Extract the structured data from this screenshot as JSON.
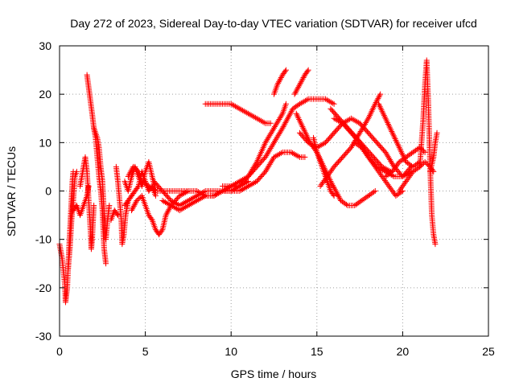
{
  "chart_data": {
    "type": "scatter",
    "title": "Day 272 of 2023, Sidereal Day-to-day VTEC variation (SDTVAR) for receiver ufcd",
    "xlabel": "GPS time / hours",
    "ylabel": "SDTVAR / TECUs",
    "xlim": [
      0,
      25
    ],
    "ylim": [
      -30,
      30
    ],
    "xticks": [
      "0",
      "5",
      "10",
      "15",
      "20",
      "25"
    ],
    "yticks": [
      "-30",
      "-20",
      "-10",
      "0",
      "10",
      "20",
      "30"
    ],
    "grid": true,
    "marker": "+",
    "color": "#ff0000",
    "tracks": [
      [
        [
          0.0,
          -11
        ],
        [
          0.15,
          -14
        ],
        [
          0.3,
          -19
        ],
        [
          0.35,
          -23
        ],
        [
          0.45,
          -20
        ],
        [
          0.55,
          -12
        ],
        [
          0.65,
          -5
        ],
        [
          0.75,
          2
        ],
        [
          0.8,
          4
        ]
      ],
      [
        [
          0.5,
          -16
        ],
        [
          0.6,
          -12
        ],
        [
          0.7,
          -6
        ],
        [
          0.8,
          -2
        ],
        [
          0.9,
          3
        ],
        [
          1.0,
          4
        ]
      ],
      [
        [
          0.8,
          -4
        ],
        [
          1.0,
          -3
        ],
        [
          1.2,
          -5
        ],
        [
          1.4,
          -3
        ],
        [
          1.6,
          -1
        ],
        [
          1.7,
          1
        ]
      ],
      [
        [
          1.2,
          1
        ],
        [
          1.3,
          3
        ],
        [
          1.4,
          5
        ],
        [
          1.5,
          7
        ],
        [
          1.6,
          4
        ],
        [
          1.7,
          -2
        ],
        [
          1.8,
          -8
        ],
        [
          1.85,
          -12
        ],
        [
          1.9,
          -10
        ],
        [
          2.0,
          -3
        ]
      ],
      [
        [
          1.6,
          24
        ],
        [
          1.75,
          20
        ],
        [
          1.9,
          16
        ],
        [
          2.0,
          13
        ],
        [
          2.1,
          11
        ],
        [
          2.2,
          7
        ],
        [
          2.3,
          3
        ],
        [
          2.4,
          0
        ],
        [
          2.5,
          -4
        ],
        [
          2.6,
          -12
        ],
        [
          2.7,
          -15
        ]
      ],
      [
        [
          2.0,
          13
        ],
        [
          2.2,
          11
        ],
        [
          2.3,
          9
        ],
        [
          2.4,
          5
        ],
        [
          2.5,
          2
        ],
        [
          2.6,
          -5
        ],
        [
          2.7,
          -10
        ],
        [
          2.8,
          -6
        ],
        [
          2.9,
          -3
        ]
      ],
      [
        [
          3.0,
          -6
        ],
        [
          3.2,
          -4
        ],
        [
          3.4,
          -5
        ]
      ],
      [
        [
          3.3,
          5
        ],
        [
          3.4,
          2
        ],
        [
          3.5,
          -2
        ],
        [
          3.6,
          -6
        ],
        [
          3.65,
          -11
        ],
        [
          3.75,
          -9
        ],
        [
          3.85,
          -5
        ],
        [
          4.0,
          -2
        ]
      ],
      [
        [
          3.8,
          2
        ],
        [
          4.0,
          0
        ],
        [
          4.2,
          3
        ],
        [
          4.4,
          5
        ],
        [
          4.6,
          3
        ],
        [
          4.8,
          1
        ],
        [
          5.0,
          4
        ],
        [
          5.2,
          6
        ],
        [
          5.4,
          3
        ],
        [
          5.6,
          0
        ]
      ],
      [
        [
          3.8,
          -3
        ],
        [
          4.0,
          -2
        ],
        [
          4.2,
          -1
        ],
        [
          4.4,
          0
        ],
        [
          4.6,
          1
        ],
        [
          4.8,
          4
        ],
        [
          5.0,
          2
        ],
        [
          5.2,
          0
        ],
        [
          5.4,
          1
        ],
        [
          5.6,
          -1
        ]
      ],
      [
        [
          4.2,
          -4
        ],
        [
          4.5,
          -2
        ],
        [
          4.8,
          -1
        ],
        [
          5.0,
          -3
        ],
        [
          5.2,
          -5
        ],
        [
          5.4,
          -6
        ],
        [
          5.6,
          -8
        ],
        [
          5.8,
          -9
        ],
        [
          6.0,
          -8
        ],
        [
          6.2,
          -5
        ],
        [
          6.5,
          -3
        ],
        [
          7.0,
          -1
        ],
        [
          7.5,
          0
        ]
      ],
      [
        [
          4.0,
          3
        ],
        [
          4.3,
          5
        ],
        [
          4.6,
          4
        ],
        [
          4.8,
          2
        ],
        [
          5.2,
          1
        ],
        [
          5.6,
          0
        ],
        [
          6.0,
          0
        ],
        [
          6.5,
          0
        ],
        [
          7.0,
          0
        ],
        [
          7.5,
          0
        ],
        [
          8.0,
          0
        ]
      ],
      [
        [
          5.5,
          2
        ],
        [
          6.0,
          0
        ],
        [
          6.5,
          -2
        ],
        [
          7.0,
          -3
        ],
        [
          7.5,
          -2
        ],
        [
          8.0,
          -1
        ],
        [
          8.5,
          0
        ],
        [
          9.0,
          0
        ],
        [
          9.5,
          0
        ],
        [
          10.0,
          1
        ]
      ],
      [
        [
          6.0,
          -2
        ],
        [
          6.5,
          -3
        ],
        [
          7.0,
          -4
        ],
        [
          7.5,
          -3
        ],
        [
          8.0,
          -2
        ],
        [
          8.5,
          -1
        ],
        [
          9.0,
          -1
        ],
        [
          9.5,
          0
        ],
        [
          10.0,
          0
        ]
      ],
      [
        [
          8.0,
          0
        ],
        [
          8.5,
          -1
        ],
        [
          9.0,
          -1
        ],
        [
          9.5,
          0
        ],
        [
          10.0,
          1
        ],
        [
          10.5,
          1
        ],
        [
          11.0,
          2
        ]
      ],
      [
        [
          8.5,
          18
        ],
        [
          9.0,
          18
        ],
        [
          9.5,
          18
        ],
        [
          10.0,
          18
        ],
        [
          10.5,
          17
        ],
        [
          11.0,
          16
        ],
        [
          11.5,
          15
        ],
        [
          12.0,
          14
        ],
        [
          12.3,
          14
        ]
      ],
      [
        [
          9.5,
          0
        ],
        [
          10.0,
          0
        ],
        [
          10.5,
          0
        ],
        [
          11.0,
          1
        ],
        [
          11.5,
          2
        ],
        [
          12.0,
          4
        ],
        [
          12.5,
          7
        ],
        [
          13.0,
          8
        ],
        [
          13.5,
          8
        ],
        [
          14.0,
          7
        ],
        [
          14.3,
          7
        ]
      ],
      [
        [
          9.5,
          1
        ],
        [
          10.0,
          1
        ],
        [
          10.5,
          2
        ],
        [
          11.0,
          3
        ],
        [
          11.5,
          5
        ],
        [
          12.0,
          7
        ],
        [
          12.5,
          10
        ],
        [
          13.0,
          13
        ],
        [
          13.3,
          15
        ],
        [
          13.6,
          17
        ],
        [
          14.0,
          18
        ],
        [
          14.5,
          19
        ],
        [
          15.0,
          19
        ],
        [
          15.5,
          19
        ],
        [
          16.0,
          18
        ]
      ],
      [
        [
          10.0,
          0
        ],
        [
          10.5,
          1
        ],
        [
          11.0,
          3
        ],
        [
          11.5,
          6
        ],
        [
          12.0,
          10
        ],
        [
          12.5,
          13
        ],
        [
          13.0,
          16
        ],
        [
          13.2,
          18
        ]
      ],
      [
        [
          12.5,
          20
        ],
        [
          12.7,
          22
        ],
        [
          13.0,
          24
        ],
        [
          13.2,
          25
        ]
      ],
      [
        [
          13.7,
          20
        ],
        [
          14.0,
          22
        ],
        [
          14.3,
          24
        ],
        [
          14.5,
          25
        ]
      ],
      [
        [
          13.8,
          16
        ],
        [
          14.2,
          13
        ],
        [
          14.6,
          10
        ],
        [
          15.0,
          8
        ],
        [
          15.4,
          5
        ],
        [
          15.8,
          2
        ],
        [
          16.1,
          0
        ],
        [
          16.4,
          -2
        ],
        [
          16.8,
          -3
        ],
        [
          17.2,
          -3
        ],
        [
          17.6,
          -2
        ],
        [
          18.0,
          -1
        ],
        [
          18.4,
          0
        ]
      ],
      [
        [
          14.8,
          11
        ],
        [
          15.0,
          8
        ],
        [
          15.2,
          6
        ],
        [
          15.4,
          4
        ],
        [
          15.6,
          2
        ],
        [
          15.8,
          0
        ],
        [
          16.0,
          -1
        ]
      ],
      [
        [
          14.0,
          12
        ],
        [
          14.5,
          10
        ],
        [
          15.0,
          9
        ],
        [
          15.5,
          10
        ],
        [
          16.0,
          12
        ],
        [
          16.5,
          14
        ],
        [
          17.0,
          15
        ],
        [
          17.5,
          14
        ],
        [
          18.0,
          12
        ],
        [
          18.5,
          10
        ],
        [
          19.0,
          8
        ],
        [
          19.5,
          5
        ],
        [
          20.0,
          3
        ],
        [
          20.5,
          4
        ]
      ],
      [
        [
          15.2,
          1
        ],
        [
          15.6,
          3
        ],
        [
          16.0,
          5
        ],
        [
          16.5,
          7
        ],
        [
          17.0,
          9
        ],
        [
          17.5,
          12
        ],
        [
          18.0,
          15
        ],
        [
          18.4,
          18
        ],
        [
          18.7,
          20
        ]
      ],
      [
        [
          16.0,
          15
        ],
        [
          16.5,
          14
        ],
        [
          17.0,
          12
        ],
        [
          17.5,
          10
        ],
        [
          18.0,
          7
        ],
        [
          18.5,
          5
        ],
        [
          19.0,
          4
        ],
        [
          19.5,
          3
        ],
        [
          20.0,
          3
        ],
        [
          20.5,
          5
        ]
      ],
      [
        [
          15.8,
          17
        ],
        [
          16.3,
          15
        ],
        [
          16.8,
          13
        ],
        [
          17.3,
          11
        ],
        [
          17.8,
          9
        ],
        [
          18.3,
          7
        ],
        [
          18.8,
          5
        ],
        [
          19.3,
          4
        ]
      ],
      [
        [
          17.2,
          10
        ],
        [
          17.6,
          9
        ],
        [
          18.0,
          7
        ],
        [
          18.4,
          5
        ],
        [
          18.8,
          3
        ],
        [
          19.2,
          1
        ],
        [
          19.6,
          -1
        ],
        [
          20.0,
          0
        ]
      ],
      [
        [
          18.6,
          18
        ],
        [
          19.0,
          15
        ],
        [
          19.4,
          12
        ],
        [
          19.8,
          9
        ],
        [
          20.2,
          6
        ],
        [
          20.6,
          5
        ],
        [
          21.0,
          6
        ]
      ],
      [
        [
          19.0,
          3
        ],
        [
          19.4,
          4
        ],
        [
          19.8,
          6
        ],
        [
          20.2,
          7
        ],
        [
          20.6,
          8
        ],
        [
          21.0,
          9
        ],
        [
          21.3,
          8
        ]
      ],
      [
        [
          19.8,
          0
        ],
        [
          20.2,
          2
        ],
        [
          20.6,
          4
        ],
        [
          21.0,
          5
        ],
        [
          21.3,
          6
        ],
        [
          21.6,
          5
        ],
        [
          21.8,
          4
        ]
      ],
      [
        [
          21.0,
          5
        ],
        [
          21.2,
          15
        ],
        [
          21.3,
          22
        ],
        [
          21.4,
          27
        ],
        [
          21.5,
          18
        ],
        [
          21.6,
          5
        ],
        [
          21.7,
          -5
        ],
        [
          21.8,
          -9
        ],
        [
          21.9,
          -11
        ]
      ],
      [
        [
          21.6,
          4
        ],
        [
          21.8,
          7
        ],
        [
          21.9,
          10
        ],
        [
          22.0,
          12
        ]
      ]
    ]
  }
}
